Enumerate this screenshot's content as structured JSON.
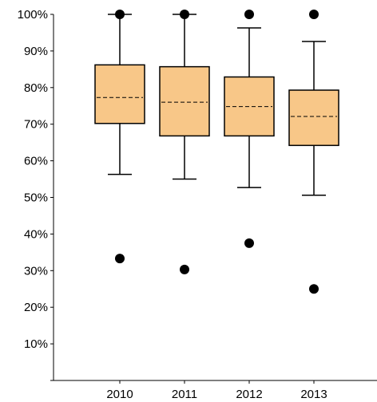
{
  "chart_data": {
    "type": "box",
    "categories": [
      "2010",
      "2011",
      "2012",
      "2013"
    ],
    "y_ticks": [
      "10%",
      "20%",
      "30%",
      "40%",
      "50%",
      "60%",
      "70%",
      "80%",
      "90%",
      "100%"
    ],
    "ylim": [
      0,
      100
    ],
    "boxes": [
      {
        "category": "2010",
        "whisker_low": 56.3,
        "q1": 70.2,
        "mean": 77.3,
        "q3": 86.2,
        "whisker_high": 100,
        "outliers": [
          100,
          33.3
        ]
      },
      {
        "category": "2011",
        "whisker_low": 55.0,
        "q1": 66.8,
        "mean": 76.0,
        "q3": 85.7,
        "whisker_high": 100,
        "outliers": [
          100,
          30.3
        ]
      },
      {
        "category": "2012",
        "whisker_low": 52.7,
        "q1": 66.8,
        "mean": 74.8,
        "q3": 82.9,
        "whisker_high": 96.3,
        "outliers": [
          100,
          37.5
        ]
      },
      {
        "category": "2013",
        "whisker_low": 50.6,
        "q1": 64.2,
        "mean": 72.1,
        "q3": 79.3,
        "whisker_high": 92.6,
        "outliers": [
          100,
          25.0
        ]
      }
    ],
    "box_color": "#f8c788",
    "outlier_color": "#000000",
    "grid": false
  }
}
